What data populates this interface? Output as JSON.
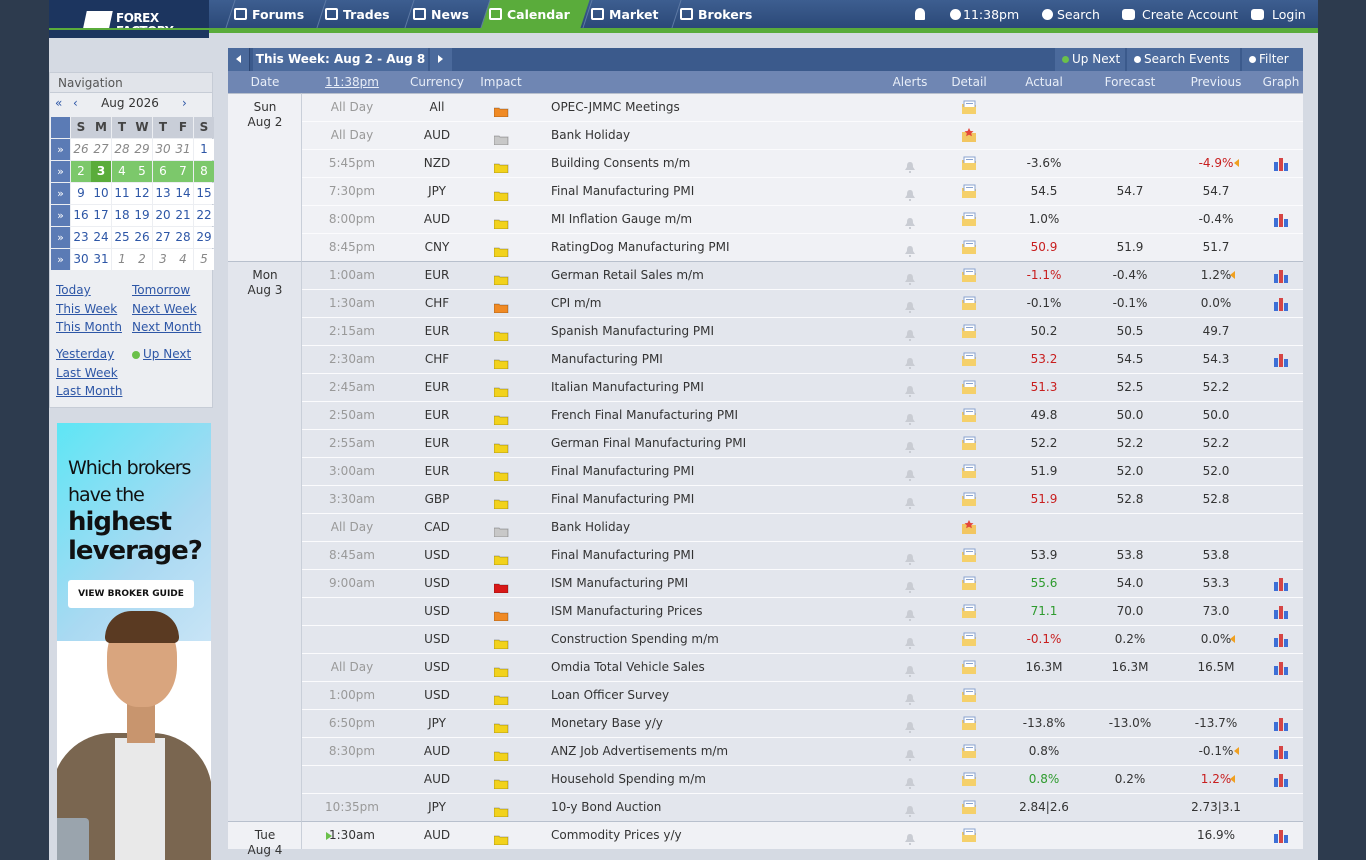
{
  "header": {
    "logo_line1": "FOREX",
    "logo_line2": "FACTORY",
    "nav": [
      "Forums",
      "Trades",
      "News",
      "Calendar",
      "Market",
      "Brokers"
    ],
    "active_nav": 3,
    "time": "11:38pm",
    "search": "Search",
    "create_account": "Create Account",
    "login": "Login"
  },
  "sidebar": {
    "title": "Navigation",
    "prev_year": "«",
    "prev_month": "‹",
    "month": "Aug 2026",
    "next_month": "›",
    "week_marker": "»",
    "weekdays": [
      "S",
      "M",
      "T",
      "W",
      "T",
      "F",
      "S"
    ],
    "weeks": [
      {
        "days": [
          26,
          27,
          28,
          29,
          30,
          31,
          1
        ],
        "outside": [
          0,
          1,
          2,
          3,
          4,
          5
        ]
      },
      {
        "days": [
          2,
          3,
          4,
          5,
          6,
          7,
          8
        ],
        "current": true
      },
      {
        "days": [
          9,
          10,
          11,
          12,
          13,
          14,
          15
        ]
      },
      {
        "days": [
          16,
          17,
          18,
          19,
          20,
          21,
          22
        ]
      },
      {
        "days": [
          23,
          24,
          25,
          26,
          27,
          28,
          29
        ]
      },
      {
        "days": [
          30,
          31,
          1,
          2,
          3,
          4,
          5
        ],
        "outside": [
          2,
          3,
          4,
          5,
          6
        ]
      }
    ],
    "today": {
      "week": 1,
      "day": 1
    },
    "link_groups": [
      [
        [
          "Today",
          "Tomorrow"
        ],
        [
          "This Week",
          "Next Week"
        ],
        [
          "This Month",
          "Next Month"
        ]
      ],
      [
        [
          "Yesterday",
          "Up Next"
        ],
        [
          "Last Week"
        ],
        [
          "Last Month"
        ]
      ]
    ]
  },
  "ad": {
    "lines": [
      "Which brokers",
      "have the",
      "highest",
      "leverage?"
    ],
    "button": "VIEW BROKER GUIDE"
  },
  "calendar": {
    "title": "This Week: Aug 2 - Aug 8",
    "buttons": [
      "Up Next",
      "Search Events",
      "Filter"
    ],
    "columns": {
      "date": "Date",
      "time": "11:38pm",
      "currency": "Currency",
      "impact": "Impact",
      "alerts": "Alerts",
      "detail": "Detail",
      "actual": "Actual",
      "forecast": "Forecast",
      "previous": "Previous",
      "graph": "Graph"
    },
    "days": [
      {
        "weekday": "Sun",
        "date": "Aug 2",
        "events": [
          {
            "time": "All Day",
            "currency": "All",
            "impact": "#f08a24",
            "event": "OPEC-JMMC Meetings",
            "detail": "folder"
          },
          {
            "time": "All Day",
            "currency": "AUD",
            "impact": "#c8c8c8",
            "event": "Bank Holiday",
            "detail": "holiday"
          },
          {
            "time": "5:45pm",
            "currency": "NZD",
            "impact": "#f2d21c",
            "event": "Building Consents m/m",
            "alert": true,
            "detail": "folder",
            "actual": "-3.6%",
            "previous": "-4.9%",
            "previous_color": "#c81e1e",
            "revised": true,
            "graph": true
          },
          {
            "time": "7:30pm",
            "currency": "JPY",
            "impact": "#f2d21c",
            "event": "Final Manufacturing PMI",
            "alert": true,
            "detail": "folder",
            "actual": "54.5",
            "forecast": "54.7",
            "previous": "54.7"
          },
          {
            "time": "8:00pm",
            "currency": "AUD",
            "impact": "#f2d21c",
            "event": "MI Inflation Gauge m/m",
            "alert": true,
            "detail": "folder",
            "actual": "1.0%",
            "previous": "-0.4%",
            "graph": true
          },
          {
            "time": "8:45pm",
            "currency": "CNY",
            "impact": "#f2d21c",
            "event": "RatingDog Manufacturing PMI",
            "alert": true,
            "detail": "folder",
            "actual": "50.9",
            "actual_color": "#c81e1e",
            "forecast": "51.9",
            "previous": "51.7"
          }
        ]
      },
      {
        "weekday": "Mon",
        "date": "Aug 3",
        "events": [
          {
            "time": "1:00am",
            "currency": "EUR",
            "impact": "#f2d21c",
            "event": "German Retail Sales m/m",
            "alert": true,
            "detail": "folder",
            "actual": "-1.1%",
            "actual_color": "#c81e1e",
            "forecast": "-0.4%",
            "previous": "1.2%",
            "revised": true,
            "graph": true
          },
          {
            "time": "1:30am",
            "currency": "CHF",
            "impact": "#f08a24",
            "event": "CPI m/m",
            "alert": true,
            "detail": "folder",
            "actual": "-0.1%",
            "forecast": "-0.1%",
            "previous": "0.0%",
            "graph": true
          },
          {
            "time": "2:15am",
            "currency": "EUR",
            "impact": "#f2d21c",
            "event": "Spanish Manufacturing PMI",
            "alert": true,
            "detail": "folder",
            "actual": "50.2",
            "forecast": "50.5",
            "previous": "49.7"
          },
          {
            "time": "2:30am",
            "currency": "CHF",
            "impact": "#f2d21c",
            "event": "Manufacturing PMI",
            "alert": true,
            "detail": "folder",
            "actual": "53.2",
            "actual_color": "#c81e1e",
            "forecast": "54.5",
            "previous": "54.3",
            "graph": true
          },
          {
            "time": "2:45am",
            "currency": "EUR",
            "impact": "#f2d21c",
            "event": "Italian Manufacturing PMI",
            "alert": true,
            "detail": "folder",
            "actual": "51.3",
            "actual_color": "#c81e1e",
            "forecast": "52.5",
            "previous": "52.2"
          },
          {
            "time": "2:50am",
            "currency": "EUR",
            "impact": "#f2d21c",
            "event": "French Final Manufacturing PMI",
            "alert": true,
            "detail": "folder",
            "actual": "49.8",
            "forecast": "50.0",
            "previous": "50.0"
          },
          {
            "time": "2:55am",
            "currency": "EUR",
            "impact": "#f2d21c",
            "event": "German Final Manufacturing PMI",
            "alert": true,
            "detail": "folder",
            "actual": "52.2",
            "forecast": "52.2",
            "previous": "52.2"
          },
          {
            "time": "3:00am",
            "currency": "EUR",
            "impact": "#f2d21c",
            "event": "Final Manufacturing PMI",
            "alert": true,
            "detail": "folder",
            "actual": "51.9",
            "forecast": "52.0",
            "previous": "52.0"
          },
          {
            "time": "3:30am",
            "currency": "GBP",
            "impact": "#f2d21c",
            "event": "Final Manufacturing PMI",
            "alert": true,
            "detail": "folder",
            "actual": "51.9",
            "actual_color": "#c81e1e",
            "forecast": "52.8",
            "previous": "52.8"
          },
          {
            "time": "All Day",
            "currency": "CAD",
            "impact": "#c8c8c8",
            "event": "Bank Holiday",
            "detail": "holiday"
          },
          {
            "time": "8:45am",
            "currency": "USD",
            "impact": "#f2d21c",
            "event": "Final Manufacturing PMI",
            "alert": true,
            "detail": "folder",
            "actual": "53.9",
            "forecast": "53.8",
            "previous": "53.8"
          },
          {
            "time": "9:00am",
            "currency": "USD",
            "impact": "#d81818",
            "event": "ISM Manufacturing PMI",
            "alert": true,
            "detail": "folder",
            "actual": "55.6",
            "actual_color": "#2e9b2e",
            "forecast": "54.0",
            "previous": "53.3",
            "graph": true
          },
          {
            "currency": "USD",
            "impact": "#f08a24",
            "event": "ISM Manufacturing Prices",
            "alert": true,
            "detail": "folder",
            "actual": "71.1",
            "actual_color": "#2e9b2e",
            "forecast": "70.0",
            "previous": "73.0",
            "graph": true
          },
          {
            "currency": "USD",
            "impact": "#f2d21c",
            "event": "Construction Spending m/m",
            "alert": true,
            "detail": "folder",
            "actual": "-0.1%",
            "actual_color": "#c81e1e",
            "forecast": "0.2%",
            "previous": "0.0%",
            "revised": true,
            "graph": true
          },
          {
            "time": "All Day",
            "currency": "USD",
            "impact": "#f2d21c",
            "event": "Omdia Total Vehicle Sales",
            "alert": true,
            "detail": "folder",
            "actual": "16.3M",
            "forecast": "16.3M",
            "previous": "16.5M",
            "graph": true
          },
          {
            "time": "1:00pm",
            "currency": "USD",
            "impact": "#f2d21c",
            "event": "Loan Officer Survey",
            "alert": true,
            "detail": "folder"
          },
          {
            "time": "6:50pm",
            "currency": "JPY",
            "impact": "#f2d21c",
            "event": "Monetary Base y/y",
            "alert": true,
            "detail": "folder",
            "actual": "-13.8%",
            "forecast": "-13.0%",
            "previous": "-13.7%",
            "graph": true
          },
          {
            "time": "8:30pm",
            "currency": "AUD",
            "impact": "#f2d21c",
            "event": "ANZ Job Advertisements m/m",
            "alert": true,
            "detail": "folder",
            "actual": "0.8%",
            "previous": "-0.1%",
            "revised": true,
            "graph": true
          },
          {
            "currency": "AUD",
            "impact": "#f2d21c",
            "event": "Household Spending m/m",
            "alert": true,
            "detail": "folder",
            "actual": "0.8%",
            "actual_color": "#2e9b2e",
            "forecast": "0.2%",
            "previous": "1.2%",
            "previous_color": "#c81e1e",
            "revised": true,
            "graph": true
          },
          {
            "time": "10:35pm",
            "currency": "JPY",
            "impact": "#f2d21c",
            "event": "10-y Bond Auction",
            "alert": true,
            "detail": "folder",
            "actual": "2.84|2.6",
            "previous": "2.73|3.1"
          }
        ]
      },
      {
        "weekday": "Tue",
        "date": "Aug 4",
        "events": [
          {
            "time": "1:30am",
            "up_next": true,
            "currency": "AUD",
            "impact": "#f2d21c",
            "event": "Commodity Prices y/y",
            "alert": true,
            "detail": "folder",
            "previous": "16.9%",
            "graph": true
          }
        ]
      }
    ]
  }
}
